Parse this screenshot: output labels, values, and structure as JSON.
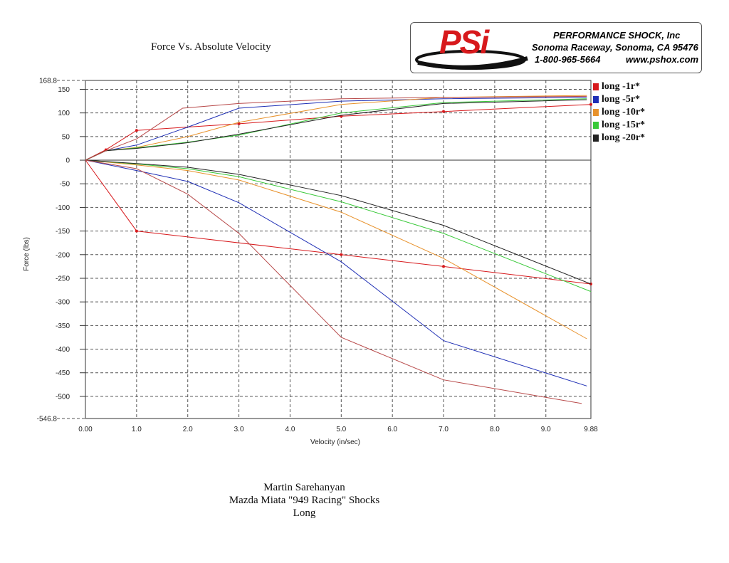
{
  "header": {
    "title": "Force Vs. Absolute Velocity"
  },
  "logo": {
    "brand": "PSi",
    "company": "PERFORMANCE SHOCK, Inc",
    "address": "Sonoma Raceway, Sonoma, CA 95476",
    "phone": "1-800-965-5664",
    "website": "www.pshox.com"
  },
  "caption": {
    "line1": "Martin Sarehanyan",
    "line2": "Mazda Miata \"949 Racing\" Shocks",
    "line3": "Long"
  },
  "chart_data": {
    "type": "line",
    "title": "Force Vs. Absolute Velocity",
    "xlabel": "Velocity (in/sec)",
    "ylabel": "Force (lbs)",
    "xlim": [
      0,
      9.88
    ],
    "ylim": [
      -546.8,
      168.8
    ],
    "grid": true,
    "legend_position": "right",
    "x_ticks": [
      "0.00",
      "1.0",
      "2.0",
      "3.0",
      "4.0",
      "5.0",
      "6.0",
      "7.0",
      "8.0",
      "9.0",
      "9.88"
    ],
    "x_tick_values": [
      0,
      1,
      2,
      3,
      4,
      5,
      6,
      7,
      8,
      9,
      9.88
    ],
    "y_ticks": [
      150,
      100,
      50,
      0,
      -50,
      -100,
      -150,
      -200,
      -250,
      -300,
      -350,
      -400,
      -450,
      -500
    ],
    "y_extent_labels": [
      "168.8",
      "-546.8"
    ],
    "series": [
      {
        "name": "long -1r*",
        "color": "#d7191c",
        "markers": true,
        "x": [
          0,
          0.4,
          1.0,
          3.0,
          5.0,
          7.0,
          9.88
        ],
        "y": [
          0,
          22,
          63,
          77,
          93,
          103,
          118
        ],
        "x_neg": [
          0,
          1.0,
          5.0,
          7.0,
          9.88
        ],
        "y_neg": [
          0,
          -150,
          -200,
          -225,
          -262
        ]
      },
      {
        "name": "long -5r*",
        "color": "#1f2fb5",
        "markers": false,
        "x": [
          0,
          0.4,
          1.0,
          2.0,
          3.0,
          5.0,
          7.0,
          9.8
        ],
        "y": [
          0,
          20,
          32,
          70,
          110,
          125,
          130,
          133
        ],
        "x_neg": [
          0,
          1.0,
          2.0,
          3.0,
          5.0,
          7.0,
          9.8
        ],
        "y_neg": [
          0,
          -22,
          -45,
          -90,
          -215,
          -382,
          -478
        ]
      },
      {
        "name": "long -10r*",
        "color": "#e8922c",
        "markers": false,
        "x": [
          0,
          0.4,
          1.0,
          2.0,
          3.0,
          5.0,
          7.0,
          9.8
        ],
        "y": [
          0,
          20,
          27,
          50,
          80,
          118,
          133,
          137
        ],
        "x_neg": [
          0,
          1.0,
          2.0,
          3.0,
          5.0,
          7.0,
          9.8
        ],
        "y_neg": [
          0,
          -10,
          -22,
          -42,
          -110,
          -208,
          -378
        ]
      },
      {
        "name": "long -15r*",
        "color": "#39c939",
        "markers": false,
        "x": [
          0,
          0.4,
          1.0,
          2.0,
          3.0,
          5.0,
          7.0,
          9.8
        ],
        "y": [
          0,
          20,
          26,
          38,
          53,
          100,
          122,
          130
        ],
        "x_neg": [
          0,
          1.0,
          2.0,
          3.0,
          5.0,
          7.0,
          9.88
        ],
        "y_neg": [
          0,
          -8,
          -18,
          -35,
          -88,
          -155,
          -278
        ]
      },
      {
        "name": "long -20r*",
        "color": "#222222",
        "markers": false,
        "x": [
          0,
          0.4,
          1.0,
          2.0,
          3.0,
          5.0,
          7.0,
          9.8
        ],
        "y": [
          0,
          20,
          25,
          37,
          55,
          95,
          120,
          128
        ],
        "x_neg": [
          0,
          1.0,
          2.0,
          3.0,
          5.0,
          7.0,
          9.88
        ],
        "y_neg": [
          0,
          -7,
          -15,
          -30,
          -75,
          -138,
          -262
        ]
      },
      {
        "name": "",
        "color": "#b84a4a",
        "markers": false,
        "x": [
          0,
          0.4,
          1.0,
          1.9,
          3.0,
          5.0,
          7.0,
          9.8
        ],
        "y": [
          0,
          20,
          45,
          110,
          120,
          130,
          133,
          135
        ],
        "x_neg": [
          0,
          1.0,
          2.0,
          3.0,
          5.0,
          7.0,
          9.7
        ],
        "y_neg": [
          0,
          -18,
          -72,
          -155,
          -375,
          -465,
          -515
        ]
      }
    ]
  }
}
